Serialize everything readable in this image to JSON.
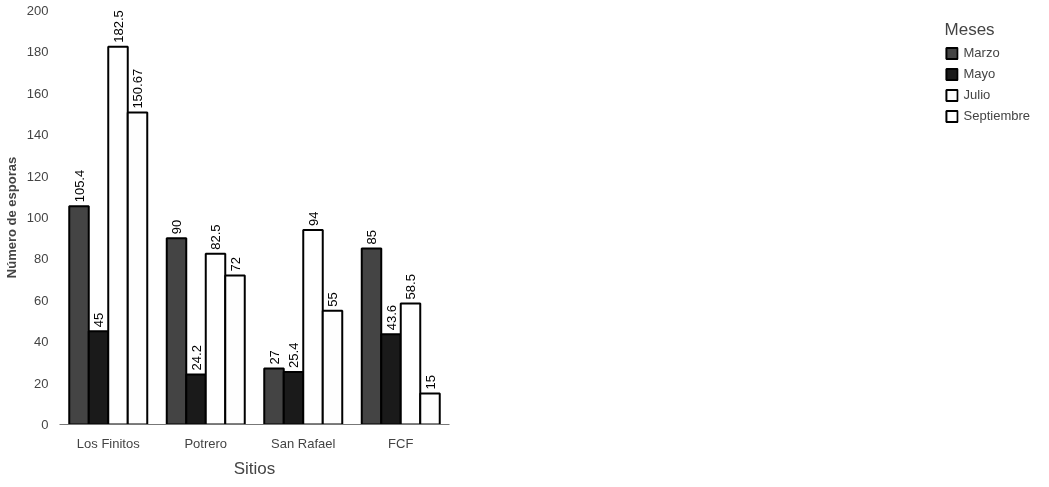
{
  "chart_data": {
    "type": "bar",
    "xlabel": "Sitios",
    "ylabel": "Número de esporas",
    "legend_title": "Meses",
    "categories": [
      "Los Finitos",
      "Potrero",
      "San Rafael",
      "FCF"
    ],
    "series": [
      {
        "name": "Marzo",
        "color": "#444444",
        "values": [
          105.4,
          90,
          27,
          85
        ]
      },
      {
        "name": "Mayo",
        "color": "#1a1a1a",
        "values": [
          45,
          24.2,
          25.4,
          43.6
        ]
      },
      {
        "name": "Julio",
        "color": "#ffffff",
        "values": [
          182.5,
          82.5,
          94,
          58.5
        ]
      },
      {
        "name": "Septiembre",
        "color": "#fefefe",
        "values": [
          150.67,
          72,
          55,
          15
        ]
      }
    ],
    "ylim": [
      0,
      200
    ],
    "yticks": [
      0,
      20,
      40,
      60,
      80,
      100,
      120,
      140,
      160,
      180,
      200
    ],
    "data_labels": true,
    "grid": false,
    "legend": "top right"
  }
}
